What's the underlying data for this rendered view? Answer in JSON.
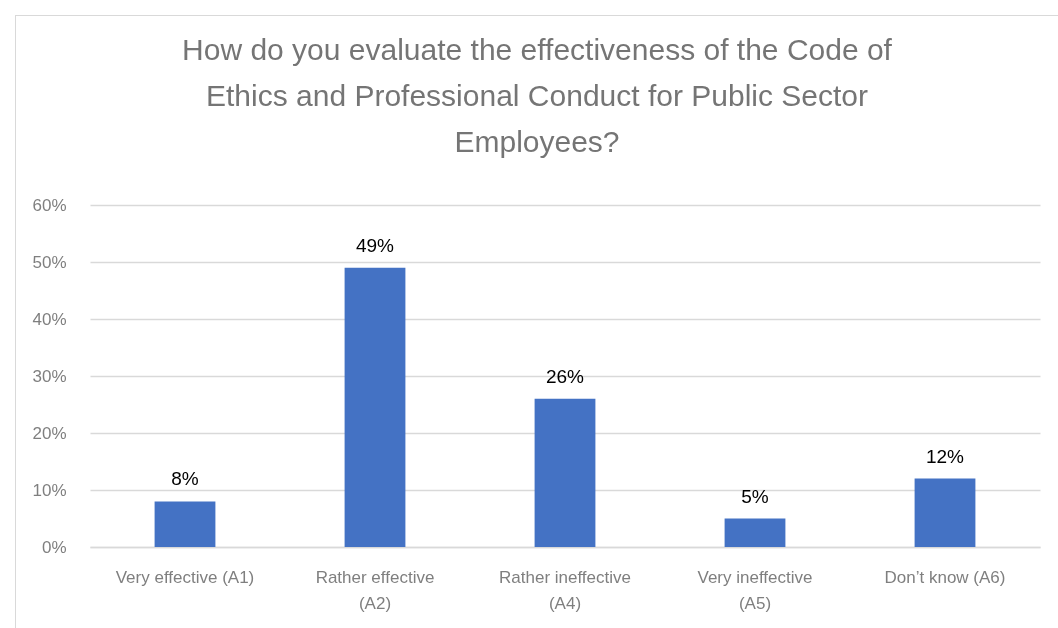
{
  "chart_data": {
    "type": "bar",
    "title": "How do you evaluate the effectiveness of the Code of Ethics and Professional Conduct for Public Sector Employees?",
    "categories": [
      "Very effective (A1)",
      "Rather effective (A2)",
      "Rather ineffective (A4)",
      "Very ineffective (A5)",
      "Don’t know (A6)"
    ],
    "values": [
      8,
      49,
      26,
      5,
      12
    ],
    "color": "#4472c4",
    "value_labels": [
      "8%",
      "49%",
      "26%",
      "5%",
      "12%"
    ],
    "ylim": [
      0,
      60
    ],
    "yticks": [
      {
        "value": 0,
        "label": "0%"
      },
      {
        "value": 10,
        "label": "10%"
      },
      {
        "value": 20,
        "label": "20%"
      },
      {
        "value": 30,
        "label": "30%"
      },
      {
        "value": 40,
        "label": "40%"
      },
      {
        "value": 50,
        "label": "50%"
      },
      {
        "value": 60,
        "label": "60%"
      }
    ],
    "grid": "y"
  }
}
